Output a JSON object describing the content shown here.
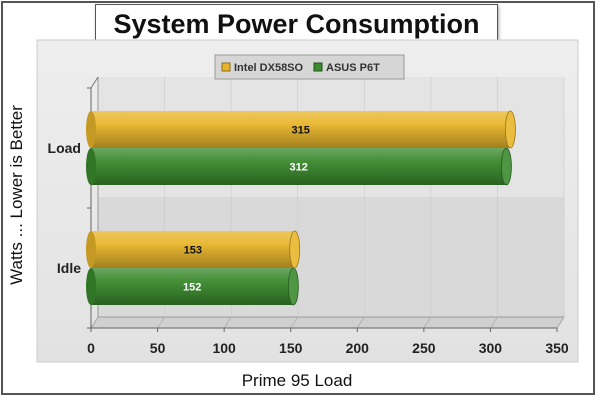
{
  "chart_data": {
    "type": "bar",
    "orientation": "horizontal",
    "title": "System Power Consumption",
    "xlabel": "Prime 95 Load",
    "ylabel": "Watts ... Lower is Better",
    "categories": [
      "Load",
      "Idle"
    ],
    "series": [
      {
        "name": "Intel DX58SO",
        "values": [
          315,
          153
        ],
        "color": "#E8B52A"
      },
      {
        "name": "ASUS P6T",
        "values": [
          312,
          152
        ],
        "color": "#3A8A2E"
      }
    ],
    "xlim": [
      0,
      350
    ],
    "xticks": [
      "0",
      "50",
      "100",
      "150",
      "200",
      "250",
      "300",
      "350"
    ],
    "grid": true,
    "legend_position": "top-center"
  }
}
